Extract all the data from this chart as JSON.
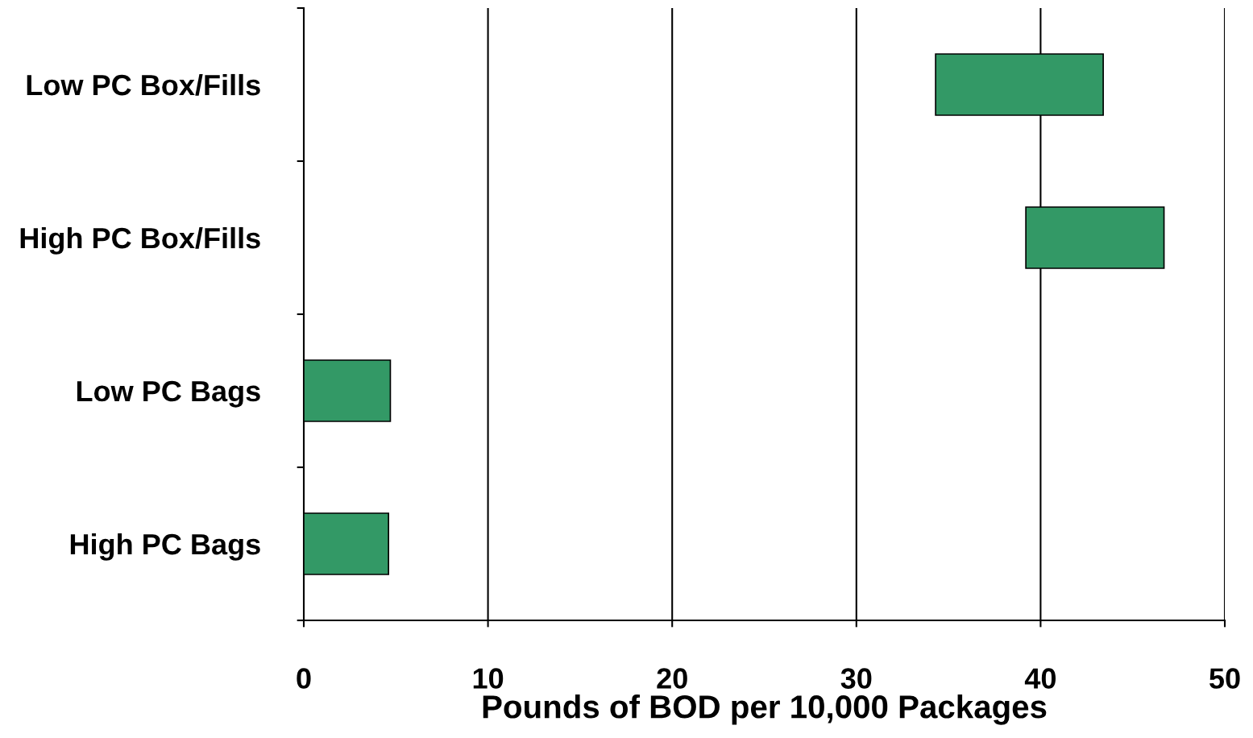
{
  "chart_data": {
    "type": "bar",
    "orientation": "horizontal",
    "xlabel": "Pounds of BOD per 10,000 Packages",
    "categories": [
      "Low PC Box/Fills",
      "High PC Box/Fills",
      "Low PC Bags",
      "High PC Bags"
    ],
    "base": [
      34.3,
      39.2,
      0,
      0
    ],
    "values": [
      9.1,
      7.5,
      4.7,
      4.6
    ],
    "color": "#339966",
    "xlim": [
      0,
      50
    ],
    "xticks": [
      0,
      10,
      20,
      30,
      40,
      50
    ],
    "grid": "x",
    "legend": false
  }
}
